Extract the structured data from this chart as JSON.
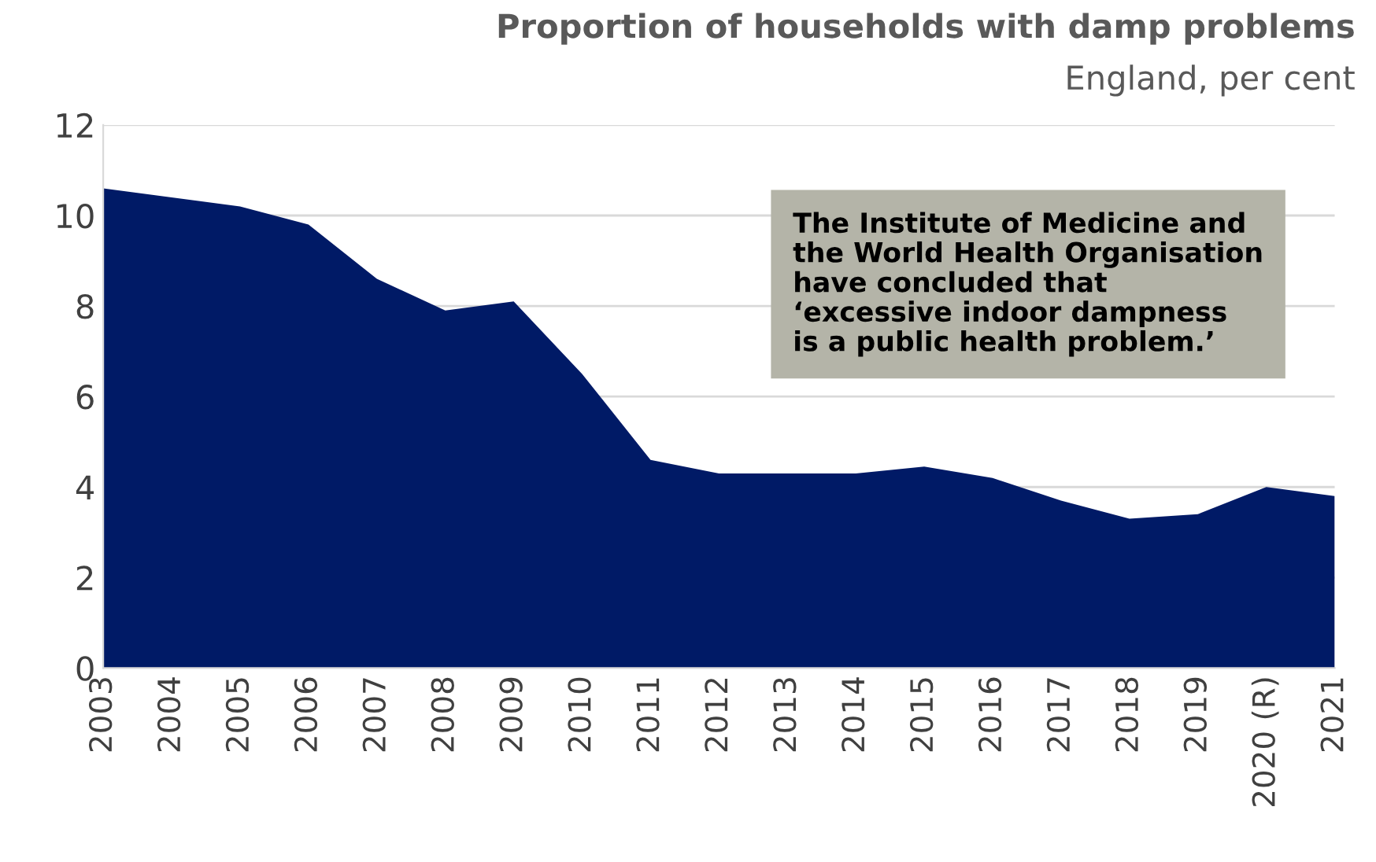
{
  "chart_data": {
    "type": "area",
    "title": "Proportion of households with damp problems",
    "subtitle": "England, per cent",
    "categories": [
      "2003",
      "2004",
      "2005",
      "2006",
      "2007",
      "2008",
      "2009",
      "2010",
      "2011",
      "2012",
      "2013",
      "2014",
      "2015",
      "2016",
      "2017",
      "2018",
      "2019",
      "2020 (R)",
      "2021"
    ],
    "series": [
      {
        "color": "#001a66",
        "values": [
          10.6,
          10.4,
          10.2,
          9.8,
          8.6,
          7.9,
          8.1,
          6.5,
          4.6,
          4.3,
          4.3,
          4.3,
          4.45,
          4.2,
          3.7,
          3.3,
          3.4,
          4.0,
          3.8
        ]
      }
    ],
    "ylim": [
      0,
      12
    ],
    "yticks": [
      0,
      2,
      4,
      6,
      8,
      10,
      12
    ],
    "grid": "y",
    "legend": false,
    "annotations": [
      "The Institute of Medicine and\nthe World Health Organisation\nhave concluded that\n‘excessive indoor dampness\nis a public health problem.’"
    ]
  }
}
